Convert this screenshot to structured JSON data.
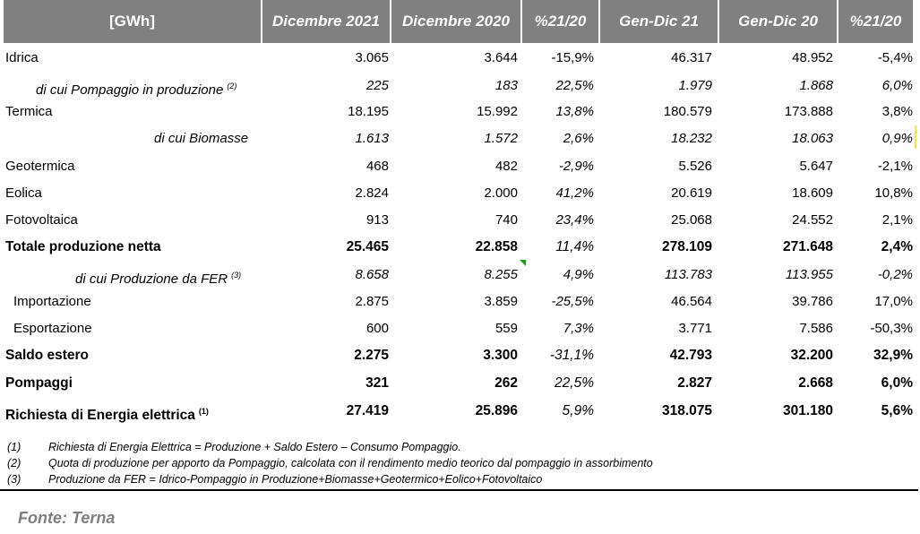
{
  "header": {
    "unit": "[GWh]",
    "col1": "Dicembre 2021",
    "col2": "Dicembre 2020",
    "col3": "%21/20",
    "col4": "Gen-Dic 21",
    "col5": "Gen-Dic 20",
    "col6": "%21/20"
  },
  "rows": [
    {
      "label": "Idrica",
      "sup": "",
      "values": [
        "3.065",
        "3.644",
        "-15,9%",
        "46.317",
        "48.952",
        "-5,4%"
      ]
    },
    {
      "label": "di cui Pompaggio in produzione",
      "sup": "(2)",
      "values": [
        "225",
        "183",
        "22,5%",
        "1.979",
        "1.868",
        "6,0%"
      ]
    },
    {
      "label": "Termica",
      "sup": "",
      "values": [
        "18.195",
        "15.992",
        "13,8%",
        "180.579",
        "173.888",
        "3,8%"
      ]
    },
    {
      "label": "di cui Biomasse",
      "sup": "",
      "values": [
        "1.613",
        "1.572",
        "2,6%",
        "18.232",
        "18.063",
        "0,9%"
      ]
    },
    {
      "label": "Geotermica",
      "sup": "",
      "values": [
        "468",
        "482",
        "-2,9%",
        "5.526",
        "5.647",
        "-2,1%"
      ]
    },
    {
      "label": "Eolica",
      "sup": "",
      "values": [
        "2.824",
        "2.000",
        "41,2%",
        "20.619",
        "18.609",
        "10,8%"
      ]
    },
    {
      "label": "Fotovoltaica",
      "sup": "",
      "values": [
        "913",
        "740",
        "23,4%",
        "25.068",
        "24.552",
        "2,1%"
      ]
    },
    {
      "label": "Totale produzione netta",
      "sup": "",
      "values": [
        "25.465",
        "22.858",
        "11,4%",
        "278.109",
        "271.648",
        "2,4%"
      ]
    },
    {
      "label": "di cui Produzione da FER",
      "sup": "(3)",
      "values": [
        "8.658",
        "8.255",
        "4,9%",
        "113.783",
        "113.955",
        "-0,2%"
      ]
    },
    {
      "label": "Importazione",
      "sup": "",
      "values": [
        "2.875",
        "3.859",
        "-25,5%",
        "46.564",
        "39.786",
        "17,0%"
      ]
    },
    {
      "label": "Esportazione",
      "sup": "",
      "values": [
        "600",
        "559",
        "7,3%",
        "3.771",
        "7.586",
        "-50,3%"
      ]
    },
    {
      "label": "Saldo estero",
      "sup": "",
      "values": [
        "2.275",
        "3.300",
        "-31,1%",
        "42.793",
        "32.200",
        "32,9%"
      ]
    },
    {
      "label": "Pompaggi",
      "sup": "",
      "values": [
        "321",
        "262",
        "22,5%",
        "2.827",
        "2.668",
        "6,0%"
      ]
    },
    {
      "label": "Richiesta di Energia elettrica",
      "sup": "(1)",
      "values": [
        "27.419",
        "25.896",
        "5,9%",
        "318.075",
        "301.180",
        "5,6%"
      ]
    }
  ],
  "notes": [
    {
      "num": "(1)",
      "text": "Richiesta di Energia Elettrica = Produzione  + Saldo Estero – Consumo  Pompaggio."
    },
    {
      "num": "(2)",
      "text": "Quota di produzione  per apporto  da Pompaggio,  calcolata con il rendimento  medio teorico dal pompaggio  in assorbimento"
    },
    {
      "num": "(3)",
      "text": "Produzione  da FER = Idrico-Pompaggio   in Produzione+Biomasse+Geotermico+Eolico+Fotovoltaico"
    }
  ],
  "source": "Fonte: Terna"
}
